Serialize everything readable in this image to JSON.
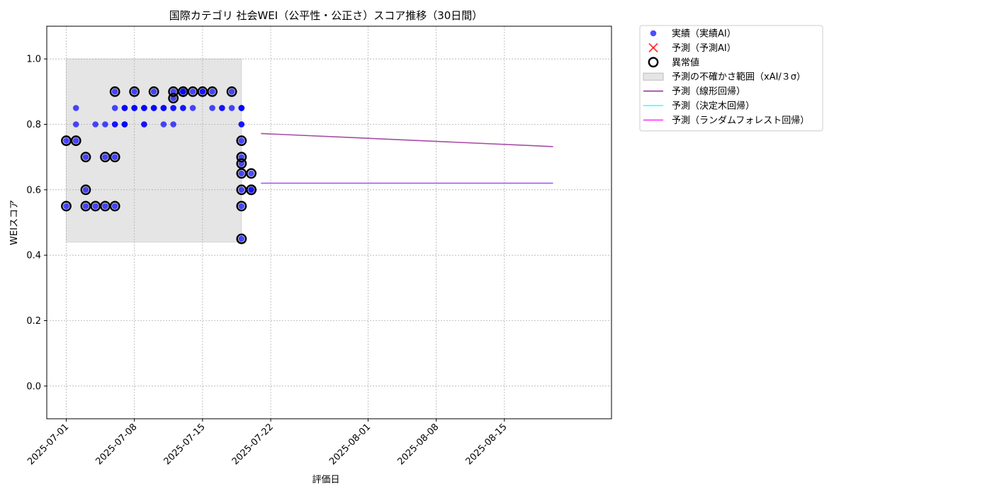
{
  "chart_data": {
    "type": "scatter",
    "title": "国際カテゴリ 社会WEI（公平性・公正さ）スコア推移（30日間）",
    "xlabel": "評価日",
    "ylabel": "WEIスコア",
    "xlim": [
      "2025-06-29",
      "2025-08-26"
    ],
    "ylim": [
      -0.1,
      1.1
    ],
    "x_ticks": [
      "2025-07-01",
      "2025-07-08",
      "2025-07-15",
      "2025-07-22",
      "2025-08-01",
      "2025-08-08",
      "2025-08-15"
    ],
    "y_ticks": [
      0.0,
      0.2,
      0.4,
      0.6,
      0.8,
      1.0
    ],
    "grid": true,
    "legend_position": "outside-top-right",
    "uncertainty_band": {
      "x_start": "2025-07-01",
      "x_end": "2025-07-19",
      "y_low": 0.44,
      "y_high": 1.0,
      "color": "#d3d3d3"
    },
    "series": [
      {
        "name": "実績（実績AI）",
        "kind": "points",
        "color": "#0000ff",
        "points": [
          [
            "2025-07-01",
            0.75
          ],
          [
            "2025-07-01",
            0.55
          ],
          [
            "2025-07-02",
            0.75
          ],
          [
            "2025-07-02",
            0.85
          ],
          [
            "2025-07-02",
            0.8
          ],
          [
            "2025-07-03",
            0.6
          ],
          [
            "2025-07-03",
            0.7
          ],
          [
            "2025-07-03",
            0.55
          ],
          [
            "2025-07-04",
            0.8
          ],
          [
            "2025-07-04",
            0.55
          ],
          [
            "2025-07-05",
            0.7
          ],
          [
            "2025-07-05",
            0.55
          ],
          [
            "2025-07-05",
            0.8
          ],
          [
            "2025-07-06",
            0.8
          ],
          [
            "2025-07-06",
            0.7
          ],
          [
            "2025-07-06",
            0.55
          ],
          [
            "2025-07-06",
            0.85
          ],
          [
            "2025-07-06",
            0.9
          ],
          [
            "2025-07-06",
            0.8
          ],
          [
            "2025-07-07",
            0.85
          ],
          [
            "2025-07-07",
            0.8
          ],
          [
            "2025-07-07",
            0.85
          ],
          [
            "2025-07-07",
            0.8
          ],
          [
            "2025-07-07",
            0.85
          ],
          [
            "2025-07-07",
            0.8
          ],
          [
            "2025-07-08",
            0.85
          ],
          [
            "2025-07-08",
            0.85
          ],
          [
            "2025-07-08",
            0.9
          ],
          [
            "2025-07-08",
            0.85
          ],
          [
            "2025-07-09",
            0.85
          ],
          [
            "2025-07-09",
            0.8
          ],
          [
            "2025-07-09",
            0.85
          ],
          [
            "2025-07-09",
            0.8
          ],
          [
            "2025-07-09",
            0.85
          ],
          [
            "2025-07-10",
            0.85
          ],
          [
            "2025-07-10",
            0.9
          ],
          [
            "2025-07-10",
            0.85
          ],
          [
            "2025-07-10",
            0.85
          ],
          [
            "2025-07-11",
            0.85
          ],
          [
            "2025-07-11",
            0.8
          ],
          [
            "2025-07-11",
            0.85
          ],
          [
            "2025-07-11",
            0.85
          ],
          [
            "2025-07-12",
            0.8
          ],
          [
            "2025-07-12",
            0.85
          ],
          [
            "2025-07-12",
            0.88
          ],
          [
            "2025-07-12",
            0.9
          ],
          [
            "2025-07-12",
            0.85
          ],
          [
            "2025-07-13",
            0.9
          ],
          [
            "2025-07-13",
            0.85
          ],
          [
            "2025-07-13",
            0.9
          ],
          [
            "2025-07-13",
            0.9
          ],
          [
            "2025-07-13",
            0.85
          ],
          [
            "2025-07-14",
            0.9
          ],
          [
            "2025-07-14",
            0.85
          ],
          [
            "2025-07-15",
            0.9
          ],
          [
            "2025-07-15",
            0.9
          ],
          [
            "2025-07-16",
            0.9
          ],
          [
            "2025-07-16",
            0.85
          ],
          [
            "2025-07-17",
            0.85
          ],
          [
            "2025-07-17",
            0.85
          ],
          [
            "2025-07-18",
            0.9
          ],
          [
            "2025-07-18",
            0.85
          ],
          [
            "2025-07-19",
            0.85
          ],
          [
            "2025-07-19",
            0.85
          ],
          [
            "2025-07-19",
            0.68
          ],
          [
            "2025-07-19",
            0.8
          ],
          [
            "2025-07-19",
            0.75
          ],
          [
            "2025-07-19",
            0.7
          ],
          [
            "2025-07-19",
            0.65
          ],
          [
            "2025-07-19",
            0.6
          ],
          [
            "2025-07-19",
            0.55
          ],
          [
            "2025-07-19",
            0.45
          ],
          [
            "2025-07-19",
            0.8
          ],
          [
            "2025-07-19",
            0.85
          ],
          [
            "2025-07-20",
            0.6
          ],
          [
            "2025-07-20",
            0.65
          ],
          [
            "2025-07-20",
            0.6
          ]
        ]
      },
      {
        "name": "予測（予測AI）",
        "kind": "points",
        "color": "#ff0000",
        "points": []
      },
      {
        "name": "異常値",
        "kind": "rings",
        "color": "#000000",
        "points": [
          [
            "2025-07-01",
            0.75
          ],
          [
            "2025-07-01",
            0.55
          ],
          [
            "2025-07-02",
            0.75
          ],
          [
            "2025-07-03",
            0.6
          ],
          [
            "2025-07-03",
            0.7
          ],
          [
            "2025-07-03",
            0.55
          ],
          [
            "2025-07-04",
            0.55
          ],
          [
            "2025-07-05",
            0.7
          ],
          [
            "2025-07-05",
            0.55
          ],
          [
            "2025-07-06",
            0.7
          ],
          [
            "2025-07-06",
            0.55
          ],
          [
            "2025-07-06",
            0.9
          ],
          [
            "2025-07-08",
            0.9
          ],
          [
            "2025-07-10",
            0.9
          ],
          [
            "2025-07-12",
            0.88
          ],
          [
            "2025-07-12",
            0.9
          ],
          [
            "2025-07-13",
            0.9
          ],
          [
            "2025-07-13",
            0.9
          ],
          [
            "2025-07-13",
            0.9
          ],
          [
            "2025-07-14",
            0.9
          ],
          [
            "2025-07-15",
            0.9
          ],
          [
            "2025-07-16",
            0.9
          ],
          [
            "2025-07-18",
            0.9
          ],
          [
            "2025-07-19",
            0.68
          ],
          [
            "2025-07-19",
            0.75
          ],
          [
            "2025-07-19",
            0.7
          ],
          [
            "2025-07-19",
            0.65
          ],
          [
            "2025-07-19",
            0.6
          ],
          [
            "2025-07-19",
            0.55
          ],
          [
            "2025-07-19",
            0.45
          ],
          [
            "2025-07-20",
            0.6
          ],
          [
            "2025-07-20",
            0.65
          ],
          [
            "2025-07-20",
            0.6
          ]
        ]
      },
      {
        "name": "予測の不確かさ範囲（xAI/３σ）",
        "kind": "band",
        "color": "#d3d3d3"
      },
      {
        "name": "予測（線形回帰）",
        "kind": "line",
        "color": "#800080",
        "points": [
          [
            "2025-07-21",
            0.772
          ],
          [
            "2025-08-20",
            0.732
          ]
        ]
      },
      {
        "name": "予測（決定木回帰）",
        "kind": "line",
        "color": "#00ffff",
        "points": [
          [
            "2025-07-21",
            0.62
          ],
          [
            "2025-08-20",
            0.62
          ]
        ]
      },
      {
        "name": "予測（ランダムフォレスト回帰）",
        "kind": "line",
        "color": "#ff00ff",
        "points": [
          [
            "2025-07-21",
            0.62
          ],
          [
            "2025-08-20",
            0.62
          ]
        ]
      }
    ]
  }
}
